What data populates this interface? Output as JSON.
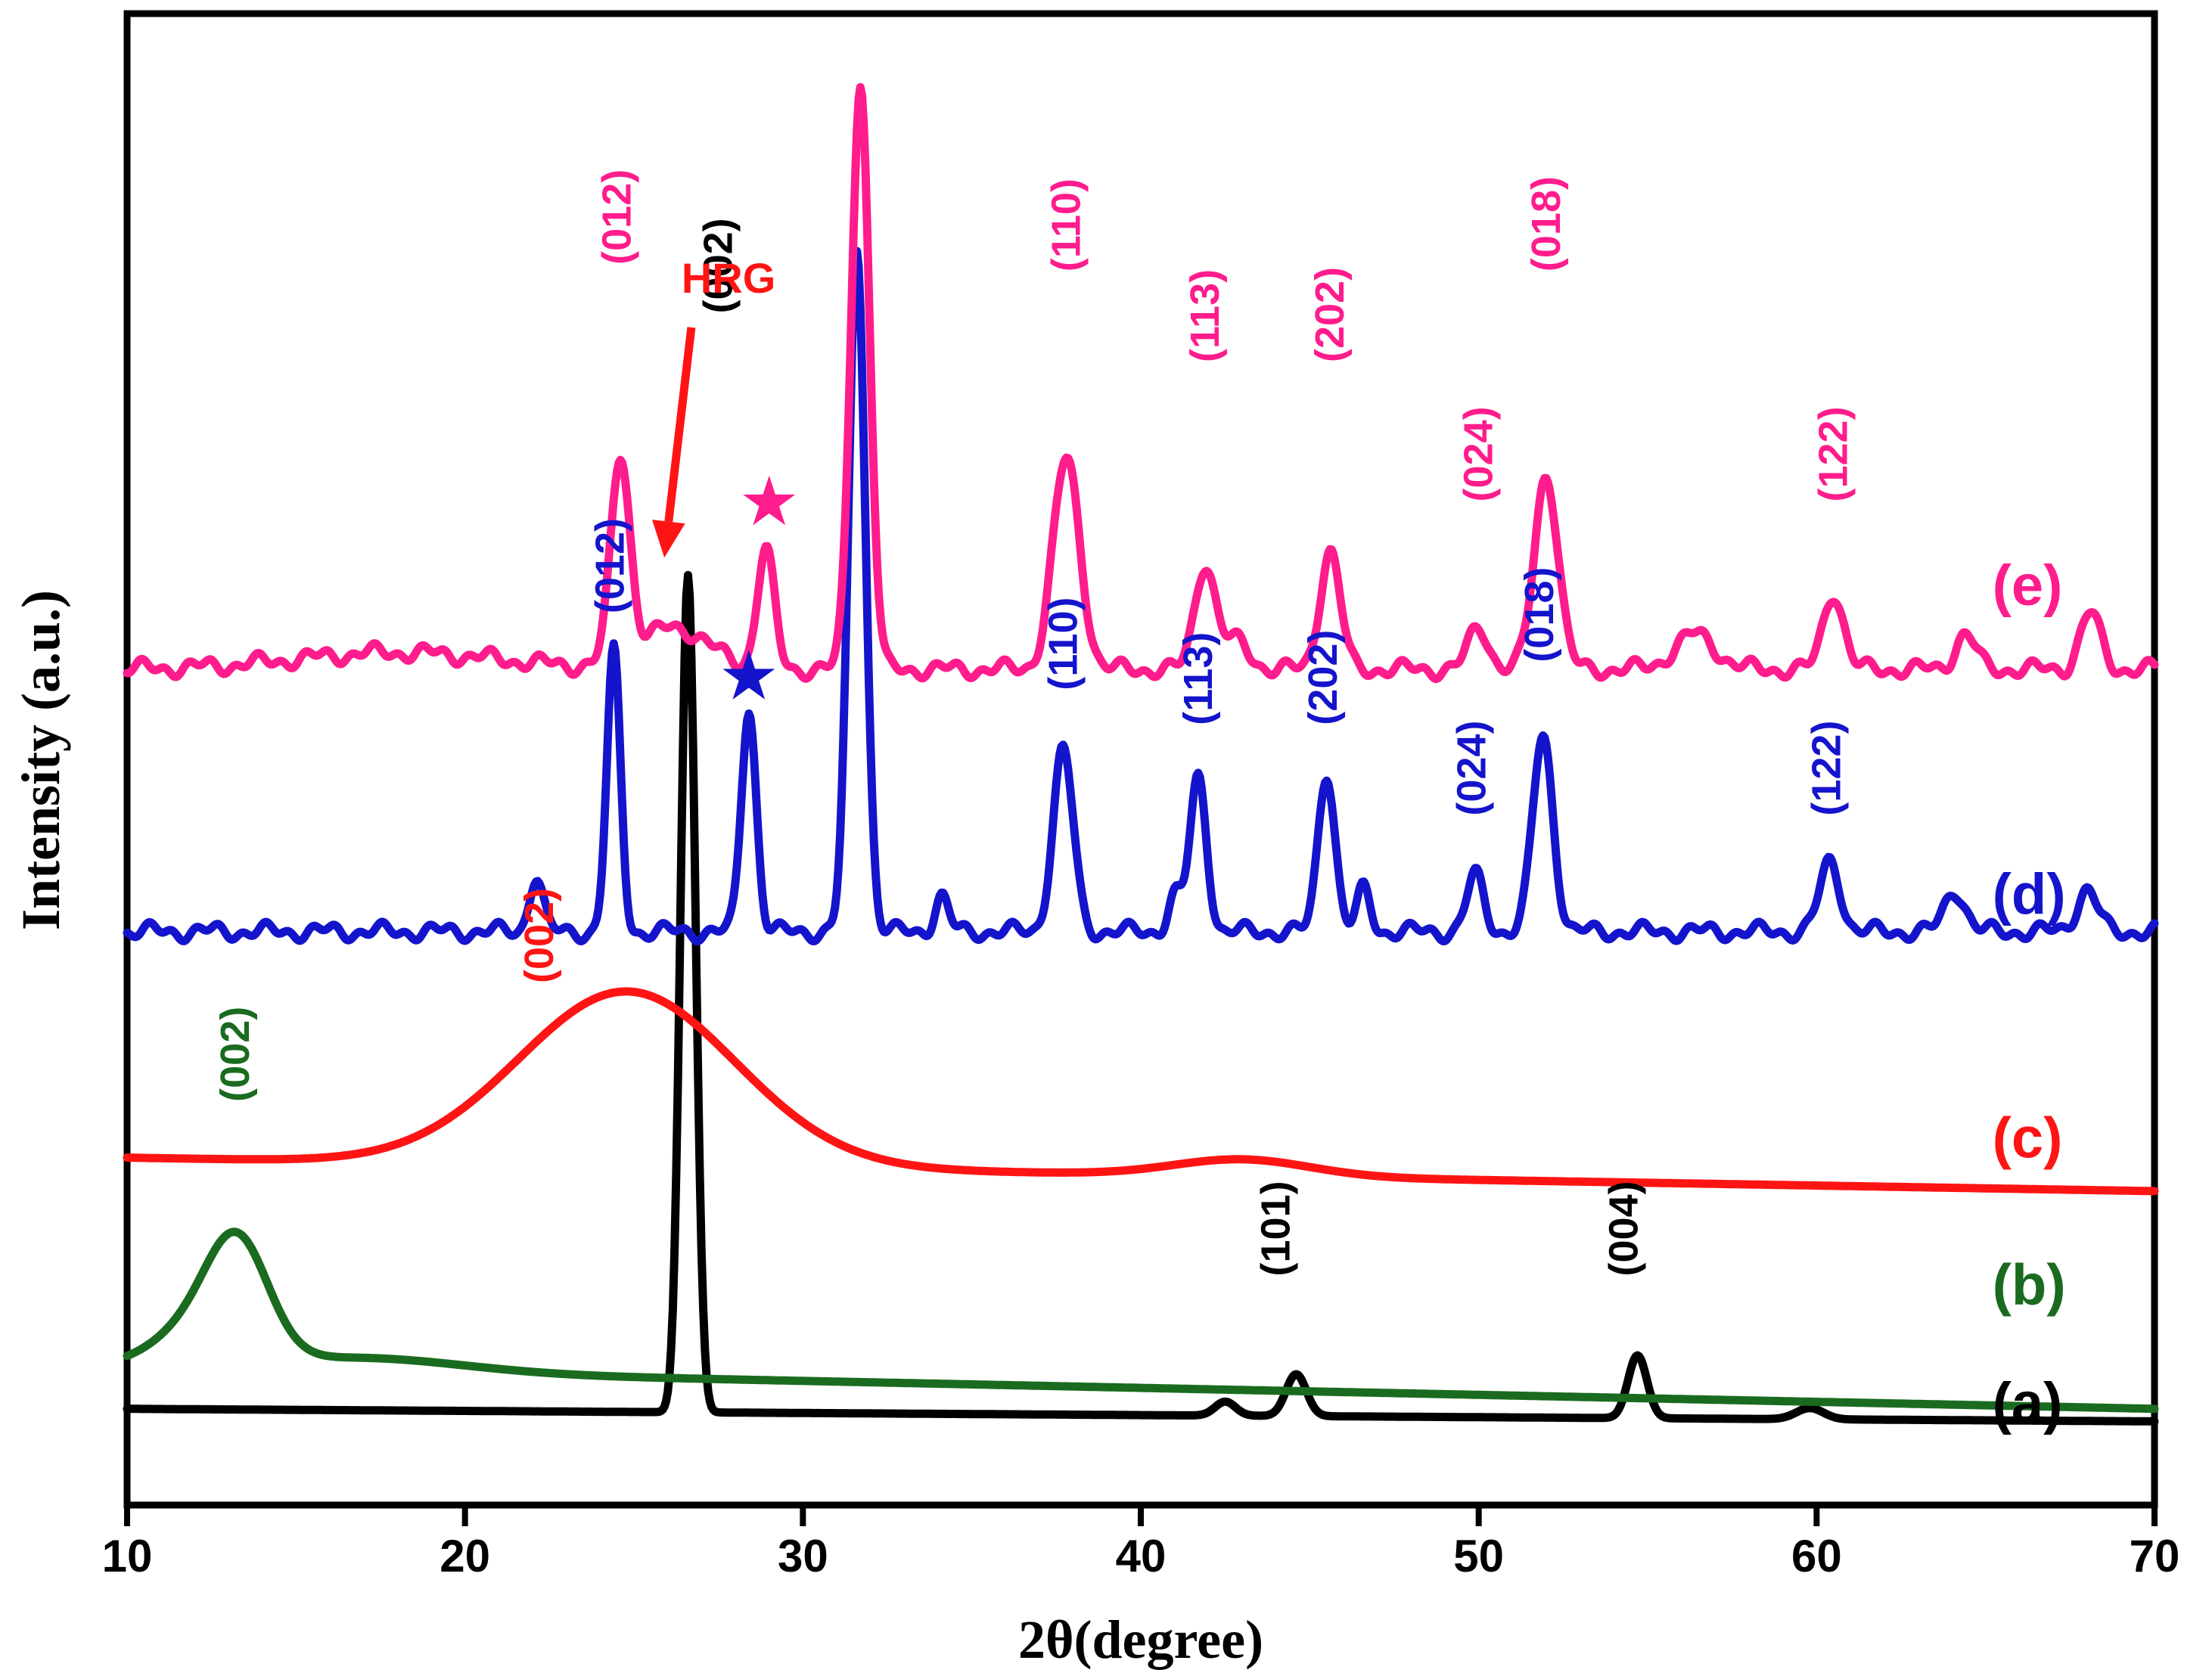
{
  "chart_data": {
    "type": "line",
    "title": "",
    "xlabel": "2θ(degree)",
    "ylabel": "Intensity (a.u.)",
    "xlim": [
      10,
      70
    ],
    "x_ticks": [
      "10",
      "20",
      "30",
      "40",
      "50",
      "60",
      "70"
    ],
    "y_ticks": [],
    "grid": false,
    "series": [
      {
        "name": "a",
        "label": "(a)",
        "color": "#000000",
        "baseline": 0.05,
        "slope": -0.00015,
        "peaks": [
          [
            26.6,
            0.6,
            0.22
          ],
          [
            42.5,
            0.01,
            0.3
          ],
          [
            44.6,
            0.03,
            0.3
          ],
          [
            54.7,
            0.045,
            0.28
          ],
          [
            59.8,
            0.008,
            0.4
          ]
        ],
        "annotations": [
          {
            "text": "(002)",
            "x": 27.5,
            "y": 0.835
          },
          {
            "text": "(101)",
            "x": 44.0,
            "y": 0.145
          },
          {
            "text": "(004)",
            "x": 54.3,
            "y": 0.145
          }
        ]
      },
      {
        "name": "b",
        "label": "(b)",
        "color": "#1a6b1f",
        "baseline": 0.08,
        "slope": -0.0005,
        "peaks": [
          [
            12.2,
            0.03,
            1.3
          ],
          [
            13.3,
            0.072,
            0.9
          ],
          [
            17.0,
            0.01,
            3.0
          ]
        ],
        "annotations": [
          {
            "text": "(002)",
            "x": 13.2,
            "y": 0.27
          }
        ]
      },
      {
        "name": "c",
        "label": "(c)",
        "color": "#ff1414",
        "baseline": 0.23,
        "slope": -0.0004,
        "peaks": [
          [
            24.8,
            0.125,
            3.2
          ],
          [
            43.0,
            0.012,
            2.0
          ]
        ],
        "annotations": [
          {
            "text": "(002)",
            "x": 22.2,
            "y": 0.355
          }
        ]
      },
      {
        "name": "d",
        "label": "(d)",
        "color": "#1414cc",
        "baseline": 0.392,
        "slope": 0.0,
        "peaks": [
          [
            22.1,
            0.04,
            0.2
          ],
          [
            24.4,
            0.2,
            0.2
          ],
          [
            28.4,
            0.16,
            0.22
          ],
          [
            31.6,
            0.49,
            0.25
          ],
          [
            34.1,
            0.025,
            0.2
          ],
          [
            37.7,
            0.13,
            0.3
          ],
          [
            41.0,
            0.025,
            0.2
          ],
          [
            41.7,
            0.11,
            0.25
          ],
          [
            45.5,
            0.115,
            0.25
          ],
          [
            46.6,
            0.03,
            0.2
          ],
          [
            49.9,
            0.04,
            0.25
          ],
          [
            51.9,
            0.14,
            0.3
          ],
          [
            60.4,
            0.05,
            0.3
          ],
          [
            64.1,
            0.03,
            0.3
          ],
          [
            68.0,
            0.03,
            0.3
          ]
        ],
        "annotations": [
          {
            "text": "(012)",
            "x": 24.3,
            "y": 0.62
          },
          {
            "text": "(110)",
            "x": 37.7,
            "y": 0.565
          },
          {
            "text": "(113)",
            "x": 41.7,
            "y": 0.54
          },
          {
            "text": "(202)",
            "x": 45.4,
            "y": 0.54
          },
          {
            "text": "(024)",
            "x": 49.8,
            "y": 0.475
          },
          {
            "text": "(018)",
            "x": 51.8,
            "y": 0.585
          },
          {
            "text": "(122)",
            "x": 60.3,
            "y": 0.475
          }
        ]
      },
      {
        "name": "e",
        "label": "(e)",
        "color": "#ff1c8c",
        "baseline": 0.58,
        "slope": 0.0,
        "peaks": [
          [
            18.0,
            0.012,
            3.0
          ],
          [
            24.6,
            0.145,
            0.28
          ],
          [
            26.2,
            0.03,
            1.0
          ],
          [
            28.9,
            0.085,
            0.25
          ],
          [
            31.7,
            0.42,
            0.27
          ],
          [
            37.8,
            0.15,
            0.4
          ],
          [
            41.9,
            0.075,
            0.3
          ],
          [
            42.8,
            0.02,
            0.4
          ],
          [
            45.6,
            0.085,
            0.3
          ],
          [
            50.0,
            0.03,
            0.3
          ],
          [
            52.0,
            0.14,
            0.35
          ],
          [
            56.4,
            0.025,
            0.6
          ],
          [
            60.5,
            0.055,
            0.3
          ],
          [
            64.4,
            0.025,
            0.3
          ],
          [
            68.1,
            0.04,
            0.3
          ]
        ],
        "annotations": [
          {
            "text": "(012)",
            "x": 24.5,
            "y": 0.87
          },
          {
            "text": "(110)",
            "x": 37.8,
            "y": 0.865
          },
          {
            "text": "(113)",
            "x": 41.9,
            "y": 0.8
          },
          {
            "text": "(202)",
            "x": 45.6,
            "y": 0.8
          },
          {
            "text": "(024)",
            "x": 50.0,
            "y": 0.7
          },
          {
            "text": "(018)",
            "x": 52.0,
            "y": 0.865
          },
          {
            "text": "(122)",
            "x": 60.5,
            "y": 0.7
          }
        ]
      }
    ],
    "curve_labels": [
      {
        "series": "e",
        "text": "(e)",
        "x": 65.2,
        "y": 0.626
      },
      {
        "series": "d",
        "text": "(d)",
        "x": 65.2,
        "y": 0.405
      },
      {
        "series": "c",
        "text": "(c)",
        "x": 65.2,
        "y": 0.23
      },
      {
        "series": "b",
        "text": "(b)",
        "x": 65.2,
        "y": 0.125
      },
      {
        "series": "a",
        "text": "(a)",
        "x": 65.2,
        "y": 0.04
      }
    ],
    "markers": [
      {
        "series": "e",
        "symbol": "★",
        "x": 29.0,
        "y": 0.7,
        "color": "#ff1c8c"
      },
      {
        "series": "d",
        "symbol": "★",
        "x": 28.4,
        "y": 0.575,
        "color": "#1414cc"
      }
    ],
    "callouts": [
      {
        "text": "HRG",
        "text_x": 27.8,
        "text_y": 0.85,
        "arrow_from": [
          26.7,
          0.825
        ],
        "arrow_to": [
          25.9,
          0.66
        ],
        "color": "#ff1414"
      }
    ]
  }
}
